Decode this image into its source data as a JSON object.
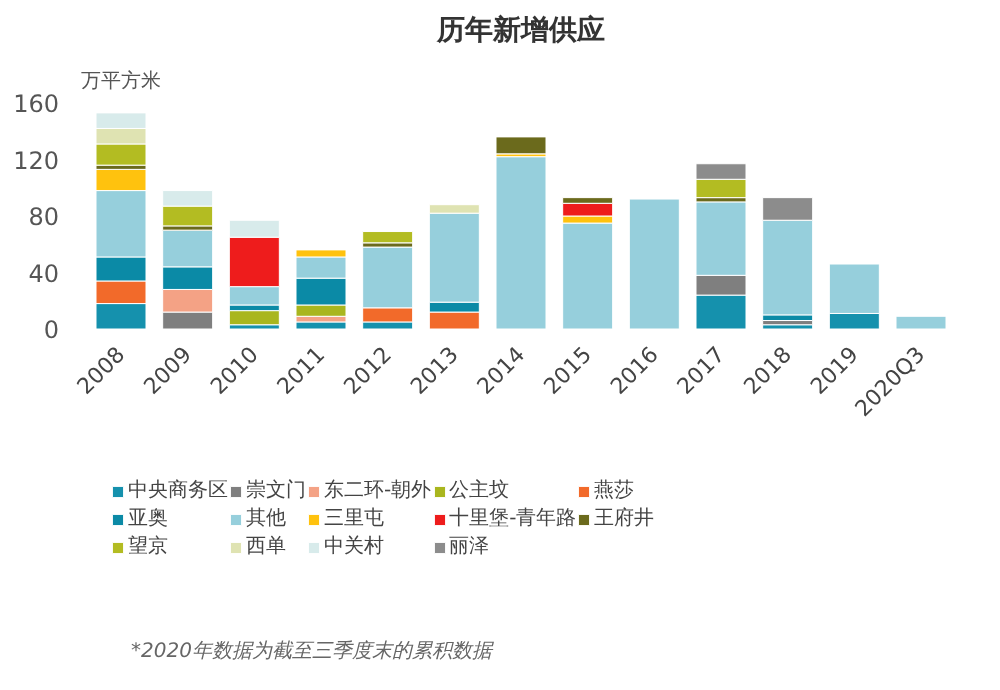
{
  "chart_data": {
    "type": "bar",
    "stacked": true,
    "title": "历年新增供应",
    "ylabel": "万平方米",
    "categories": [
      "2008",
      "2009",
      "2010",
      "2011",
      "2012",
      "2013",
      "2014",
      "2015",
      "2016",
      "2017",
      "2018",
      "2019",
      "2020Q3"
    ],
    "ylim": [
      0,
      160
    ],
    "yticks": [
      0,
      40,
      80,
      120,
      160
    ],
    "grid": false,
    "legend": "bottom",
    "annotations": [
      "*2020年数据为截至三季度末的累积数据"
    ],
    "series": [
      {
        "name": "中央商务区",
        "color": "#1591ad",
        "values": [
          18,
          null,
          3,
          5,
          5,
          null,
          null,
          null,
          null,
          24,
          3,
          11,
          null
        ]
      },
      {
        "name": "崇文门",
        "color": "#7f7f7f",
        "values": [
          null,
          12,
          null,
          null,
          null,
          null,
          null,
          null,
          null,
          14,
          3,
          null,
          null
        ]
      },
      {
        "name": "东二环-朝外",
        "color": "#f4a285",
        "values": [
          null,
          16,
          null,
          4,
          null,
          null,
          null,
          null,
          null,
          null,
          null,
          null,
          null
        ]
      },
      {
        "name": "公主坟",
        "color": "#a9b61e",
        "values": [
          null,
          null,
          10,
          8,
          null,
          null,
          null,
          null,
          null,
          null,
          null,
          null,
          null
        ]
      },
      {
        "name": "燕莎",
        "color": "#f26a2a",
        "values": [
          16,
          null,
          null,
          null,
          10,
          12,
          null,
          null,
          null,
          null,
          null,
          null,
          null
        ]
      },
      {
        "name": "亚奥",
        "color": "#0b8aa6",
        "values": [
          17,
          16,
          4,
          19,
          null,
          7,
          null,
          null,
          null,
          null,
          4,
          null,
          null
        ]
      },
      {
        "name": "其他",
        "color": "#96cfdc",
        "values": [
          47,
          26,
          13,
          15,
          43,
          63,
          122,
          75,
          92,
          52,
          67,
          35,
          9
        ]
      },
      {
        "name": "三里屯",
        "color": "#ffc20e",
        "values": [
          15,
          null,
          null,
          5,
          null,
          null,
          2,
          5,
          null,
          null,
          null,
          null,
          null
        ]
      },
      {
        "name": "十里堡-青年路",
        "color": "#ee1c1c",
        "values": [
          null,
          null,
          35,
          null,
          null,
          null,
          null,
          9,
          null,
          null,
          null,
          null,
          null
        ]
      },
      {
        "name": "王府井",
        "color": "#6b6a1c",
        "values": [
          3,
          3,
          null,
          null,
          3,
          null,
          12,
          4,
          null,
          3,
          null,
          null,
          null
        ]
      },
      {
        "name": "望京",
        "color": "#b3bc22",
        "values": [
          15,
          14,
          null,
          null,
          8,
          null,
          null,
          null,
          null,
          13,
          null,
          null,
          null
        ]
      },
      {
        "name": "西单",
        "color": "#dfe3b2",
        "values": [
          11,
          null,
          null,
          null,
          null,
          6,
          null,
          null,
          null,
          null,
          null,
          null,
          null
        ]
      },
      {
        "name": "中关村",
        "color": "#d8ebeb",
        "values": [
          11,
          11,
          12,
          null,
          null,
          null,
          null,
          null,
          null,
          null,
          null,
          null,
          null
        ]
      },
      {
        "name": "丽泽",
        "color": "#8c8c8c",
        "values": [
          null,
          null,
          null,
          null,
          null,
          null,
          null,
          null,
          null,
          11,
          16,
          null,
          null
        ]
      }
    ]
  }
}
